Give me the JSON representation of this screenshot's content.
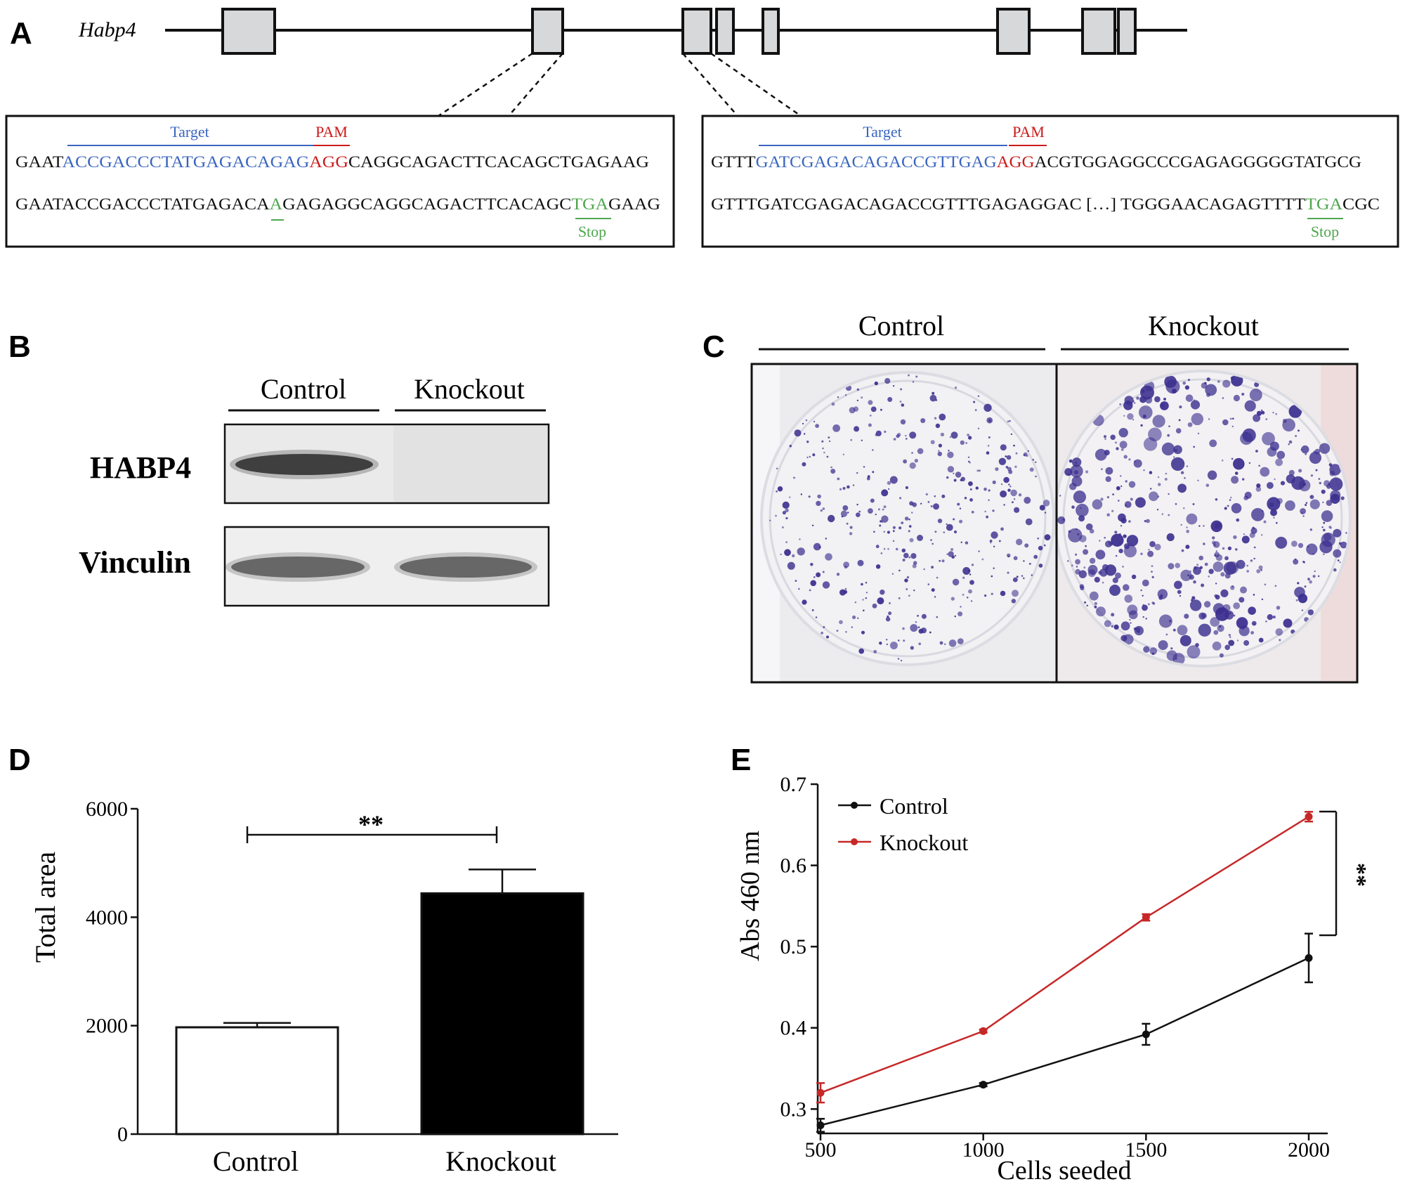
{
  "panel_letters": {
    "a": "A",
    "b": "B",
    "c": "C",
    "d": "D",
    "e": "E"
  },
  "colors": {
    "target": "#3a66c0",
    "pam": "#cc1a1a",
    "mutation": "#4ea64e",
    "control_line": "#111111",
    "knockout_line": "#c62828",
    "stain": "#3b2f8f"
  },
  "panel_a": {
    "gene_name": "Habp4",
    "left_box": {
      "target_label": "Target",
      "pam_label": "PAM",
      "ref_seq": {
        "prefix": "GAAT",
        "target": "ACCGACCCTATGAGACAGAG",
        "pam": "AGG",
        "suffix": "CAGGCAGACTTCACAGCTGAGAAG"
      },
      "mut_seq": {
        "part1": "GAATACCGACCCTATGAGACA",
        "insert": "A",
        "part2": "GAGAGGCAGGCAGACTTCACAGC",
        "stop": "TGA",
        "part3": "GAAG"
      },
      "stop_label": "Stop"
    },
    "right_box": {
      "target_label": "Target",
      "pam_label": "PAM",
      "ref_seq": {
        "prefix": "GTTT",
        "target": "GATCGAGACAGACCGTTGAG",
        "pam": "AGG",
        "suffix": "ACGTGGAGGCCCGAGAGGGGGTATGCG"
      },
      "mut_seq": {
        "part1": "GTTTGATCGAGACAGACCGTTTGAGAGGAC […] TGGGAACAGAGTTTT",
        "stop": "TGA",
        "part2": "CGC"
      },
      "stop_label": "Stop"
    }
  },
  "panel_b": {
    "col_control": "Control",
    "col_knockout": "Knockout",
    "row_habp4": "HABP4",
    "row_vinculin": "Vinculin"
  },
  "panel_c": {
    "col_control": "Control",
    "col_knockout": "Knockout"
  },
  "panel_d": {
    "significance": "**",
    "chart_data": {
      "type": "bar",
      "categories": [
        "Control",
        "Knockout"
      ],
      "values": [
        1970,
        4440
      ],
      "errors": [
        80,
        440
      ],
      "bar_colors": [
        "#ffffff",
        "#000000"
      ],
      "ylabel": "Total area",
      "ylim": [
        0,
        6000
      ],
      "yticks": [
        "0",
        "2000",
        "4000",
        "6000"
      ]
    }
  },
  "panel_e": {
    "significance": "**",
    "chart_data": {
      "type": "line",
      "x": [
        500,
        1000,
        1500,
        2000
      ],
      "xticks": [
        "500",
        "1000",
        "1500",
        "2000"
      ],
      "yticks": [
        "0.3",
        "0.4",
        "0.5",
        "0.6",
        "0.7"
      ],
      "xlim": [
        500,
        2000
      ],
      "ylim": [
        0.27,
        0.7
      ],
      "xlabel": "Cells seeded",
      "ylabel": "Abs 460 nm",
      "legend_position": "top-left",
      "series": [
        {
          "name": "Control",
          "color": "#111111",
          "values": [
            0.28,
            0.33,
            0.392,
            0.486
          ],
          "errors": [
            0.008,
            0.002,
            0.013,
            0.03
          ]
        },
        {
          "name": "Knockout",
          "color": "#c62828",
          "values": [
            0.32,
            0.396,
            0.536,
            0.66
          ],
          "errors": [
            0.012,
            0.002,
            0.004,
            0.006
          ]
        }
      ]
    }
  }
}
